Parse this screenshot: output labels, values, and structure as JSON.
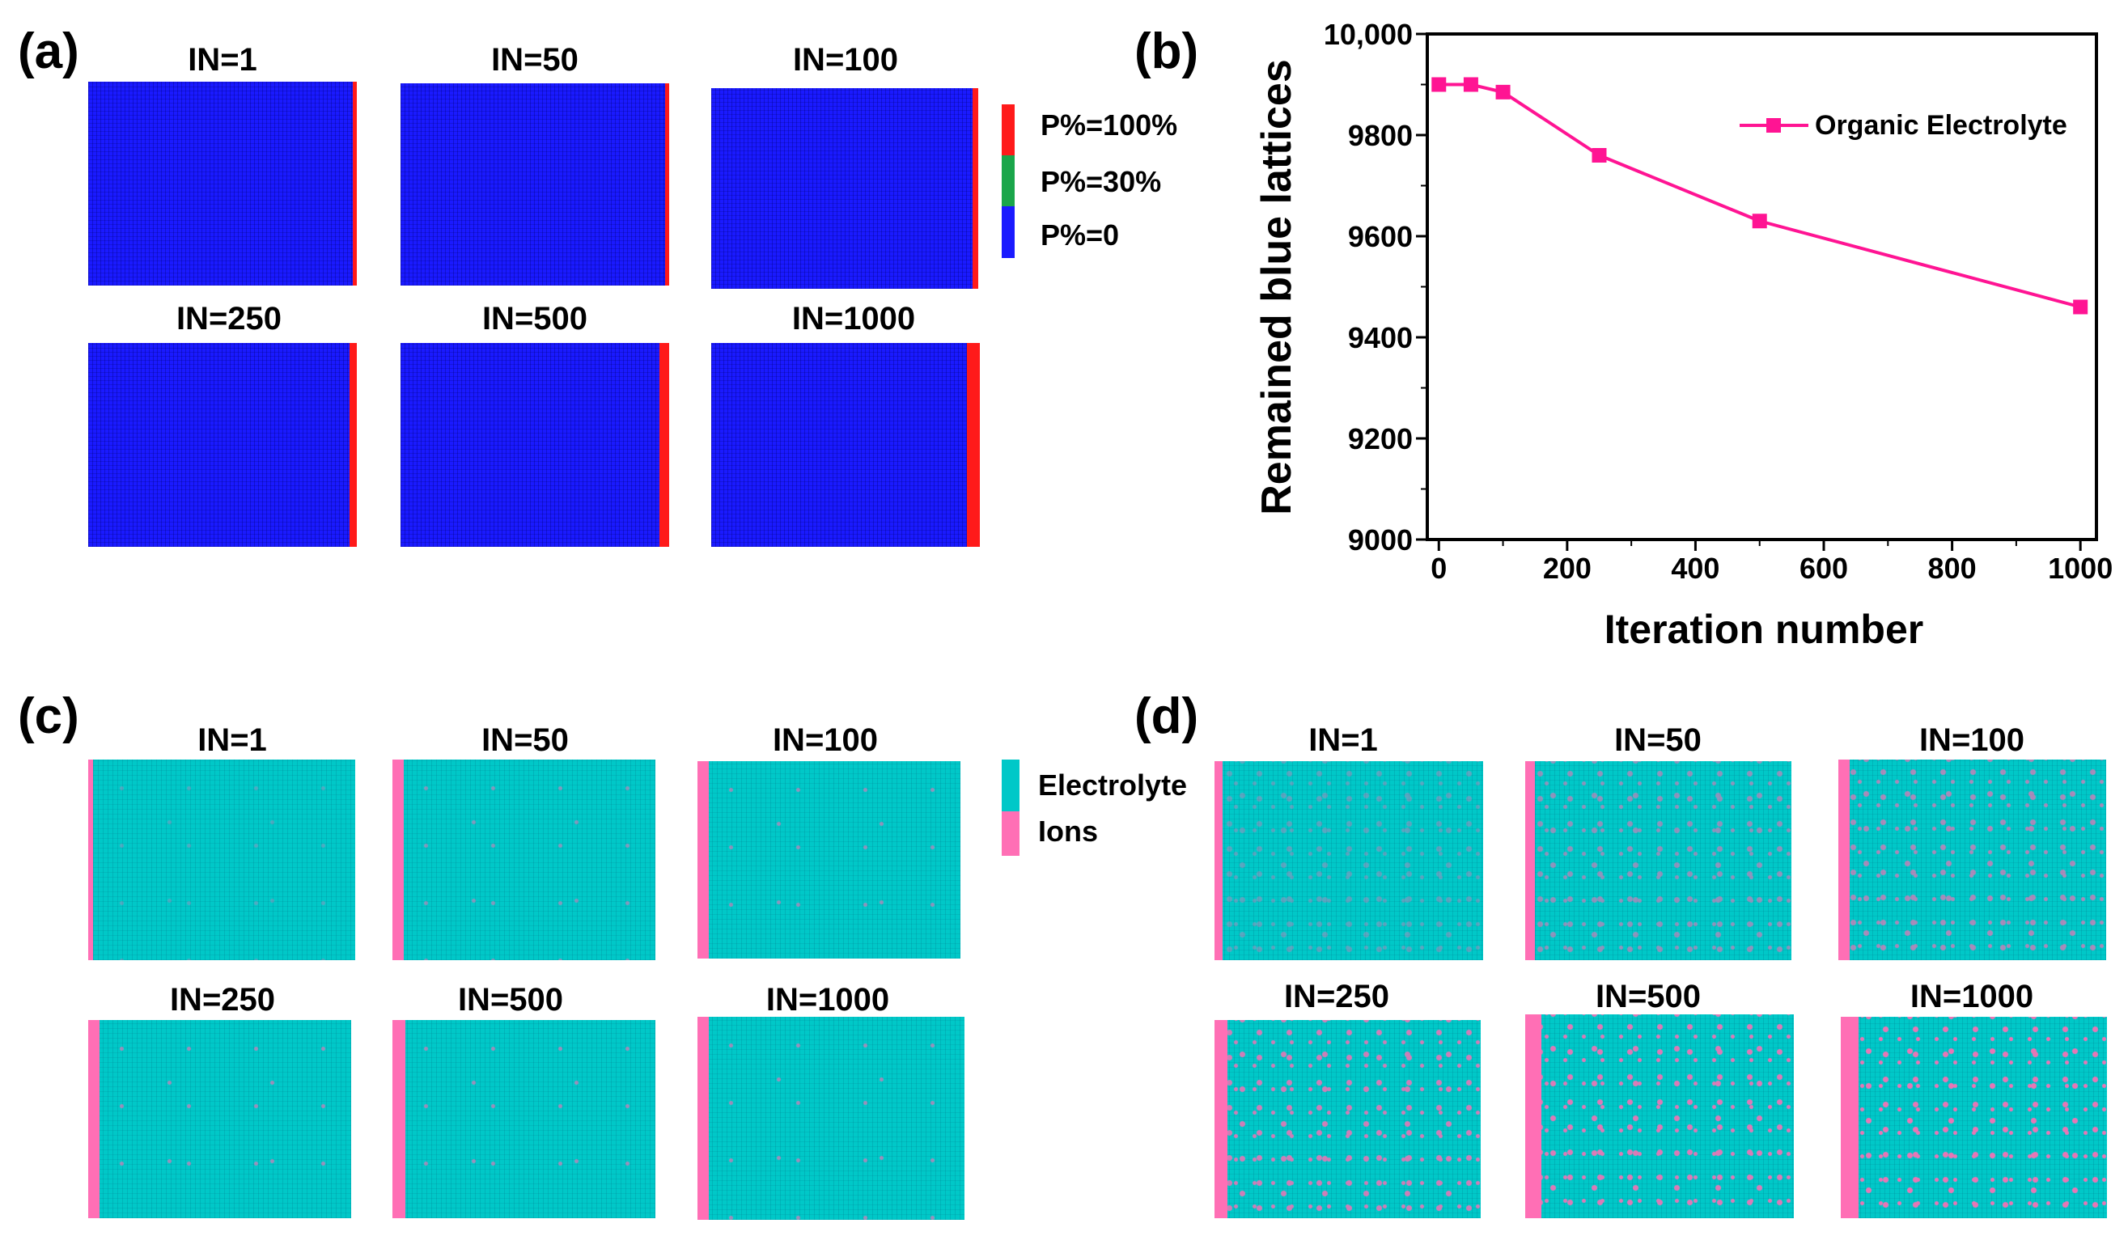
{
  "panel_labels": {
    "a": "(a)",
    "b": "(b)",
    "c": "(c)",
    "d": "(d)"
  },
  "iterations": [
    "IN=1",
    "IN=50",
    "IN=100",
    "IN=250",
    "IN=500",
    "IN=1000"
  ],
  "legend_a": {
    "items": [
      {
        "label": "P%=100%",
        "color": "#ff1a1a"
      },
      {
        "label": "P%=30%",
        "color": "#1aa64a"
      },
      {
        "label": "P%=0",
        "color": "#1a1aff"
      }
    ]
  },
  "legend_c": {
    "items": [
      {
        "label": "Electrolyte",
        "color": "#00c8c8"
      },
      {
        "label": "Ions",
        "color": "#ff6fb5"
      }
    ]
  },
  "chart_data": {
    "type": "line",
    "title": "",
    "xlabel": "Iteration number",
    "ylabel": "Remained blue lattices",
    "xlim": [
      -18,
      1025
    ],
    "ylim": [
      9000,
      10000
    ],
    "xticks": [
      0,
      200,
      400,
      600,
      800,
      1000
    ],
    "xtick_labels": [
      "0",
      "200",
      "400",
      "600",
      "800",
      "1000"
    ],
    "yticks": [
      9000,
      9200,
      9400,
      9600,
      9800,
      10000
    ],
    "ytick_labels": [
      "9000",
      "9200",
      "9400",
      "9600",
      "9800",
      "10,000"
    ],
    "grid": false,
    "legend_position": "top-right",
    "series": [
      {
        "name": "Organic Electrolyte",
        "color": "#ff1493",
        "x": [
          0,
          50,
          100,
          250,
          500,
          1000
        ],
        "y": [
          9900,
          9900,
          9885,
          9760,
          9630,
          9460
        ]
      }
    ]
  }
}
